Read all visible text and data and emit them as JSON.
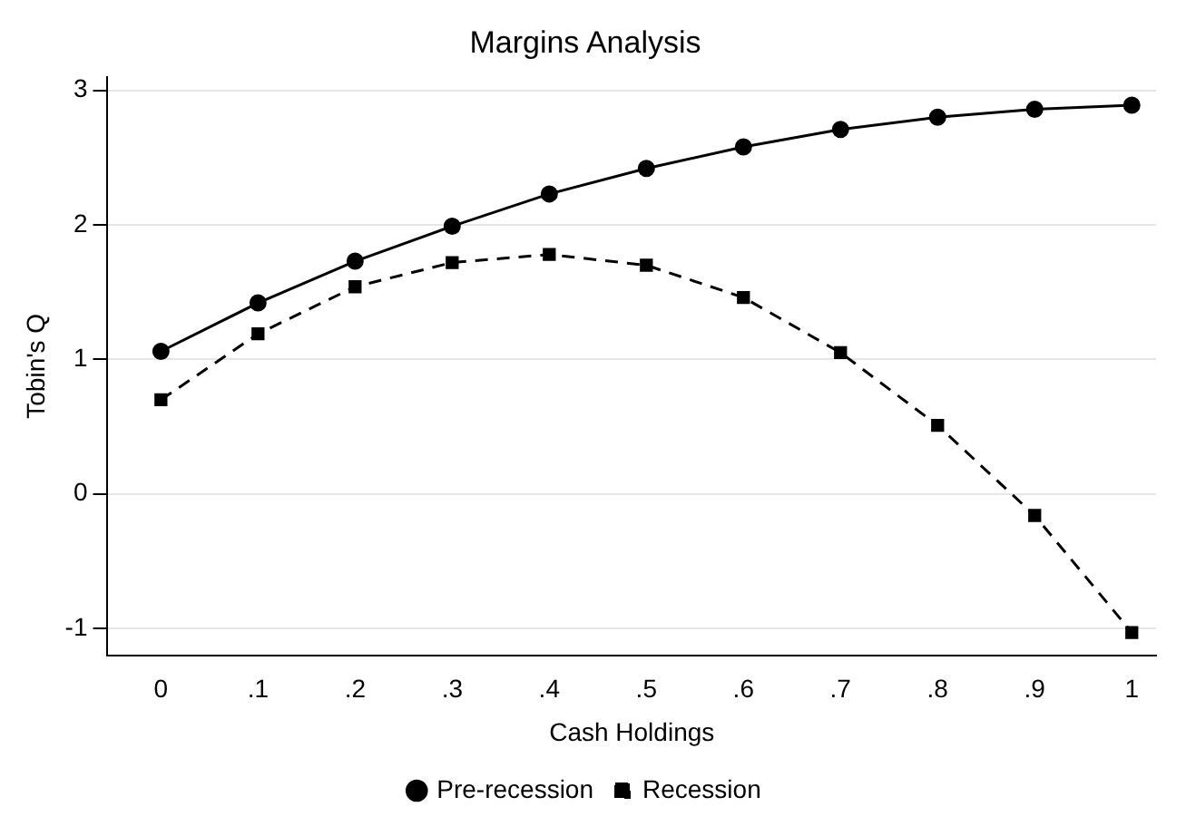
{
  "chart_data": {
    "type": "line",
    "title": "Margins Analysis",
    "xlabel": "Cash Holdings",
    "ylabel": "Tobin's Q",
    "x": [
      0,
      0.1,
      0.2,
      0.3,
      0.4,
      0.5,
      0.6,
      0.7,
      0.8,
      0.9,
      1
    ],
    "series": [
      {
        "name": "Pre-recession",
        "color": "#000000",
        "marker": "circle",
        "line_style": "solid",
        "values": [
          1.06,
          1.42,
          1.73,
          1.99,
          2.23,
          2.42,
          2.58,
          2.71,
          2.8,
          2.86,
          2.89
        ]
      },
      {
        "name": "Recession",
        "color": "#000000",
        "marker": "square",
        "line_style": "dashed",
        "values": [
          0.7,
          1.19,
          1.54,
          1.72,
          1.78,
          1.7,
          1.46,
          1.05,
          0.51,
          -0.16,
          -1.03
        ]
      }
    ],
    "xlim": [
      -0.055,
      1.025
    ],
    "ylim": [
      -1.2,
      3.1
    ],
    "xticks": [
      0,
      {
        "value": 0.1,
        "label": ".1"
      },
      {
        "value": 0.2,
        "label": ".2"
      },
      {
        "value": 0.3,
        "label": ".3"
      },
      {
        "value": 0.4,
        "label": ".4"
      },
      {
        "value": 0.5,
        "label": ".5"
      },
      {
        "value": 0.6,
        "label": ".6"
      },
      {
        "value": 0.7,
        "label": ".7"
      },
      {
        "value": 0.8,
        "label": ".8"
      },
      {
        "value": 0.9,
        "label": ".9"
      },
      1
    ],
    "yticks": [
      -1,
      0,
      1,
      2,
      3
    ],
    "grid": "y",
    "legend": "bottom"
  }
}
